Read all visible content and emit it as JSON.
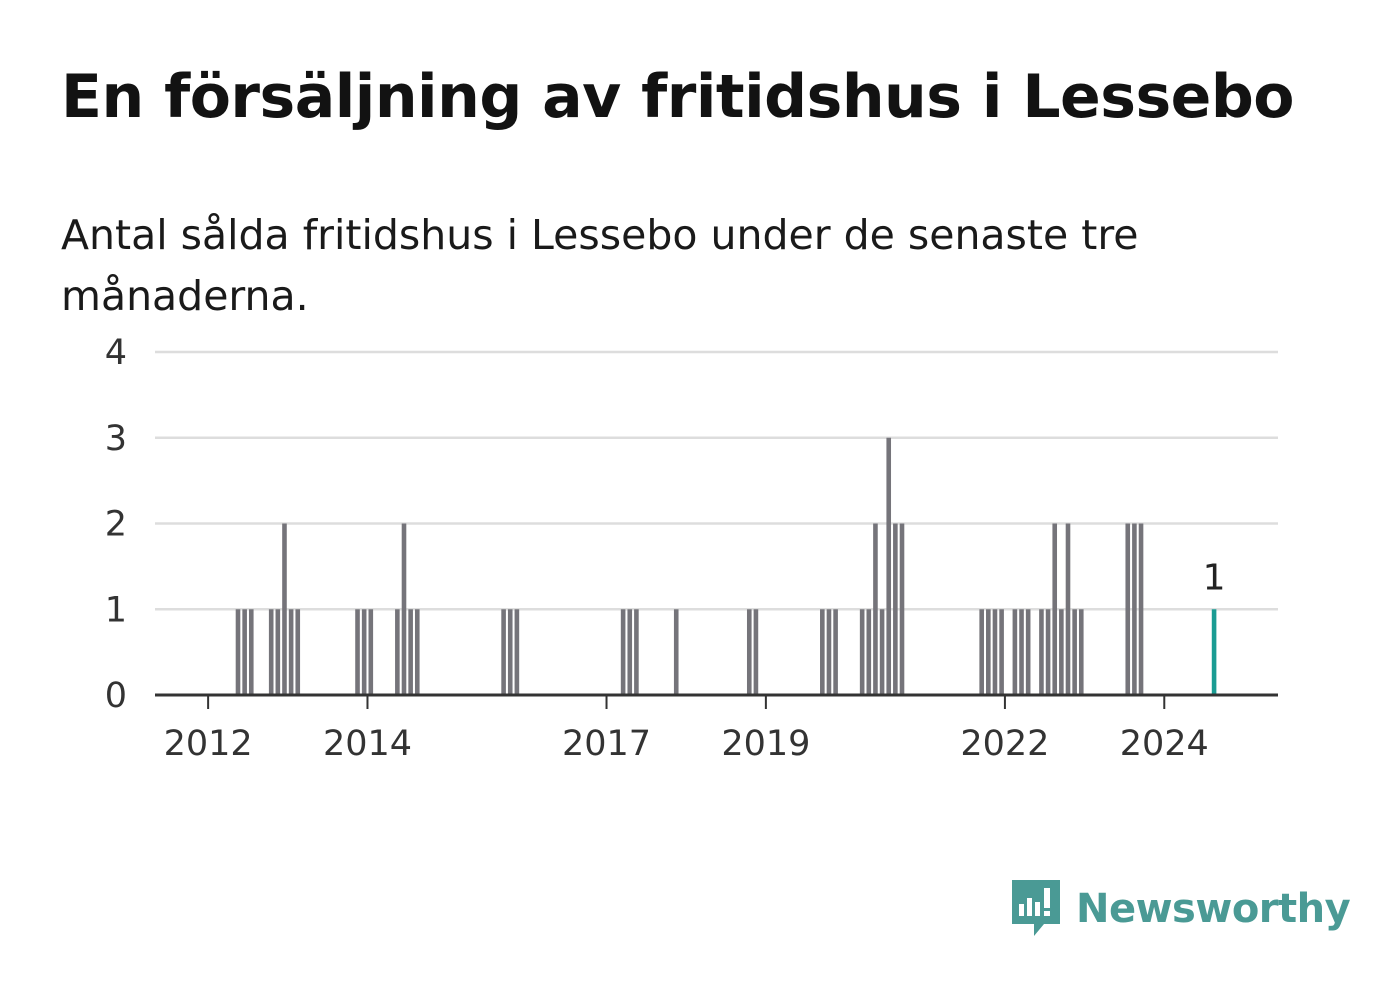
{
  "title": "En försäljning av fritidshus i Lessebo",
  "subtitle": "Antal sålda fritidshus i Lessebo under de senaste tre månaderna.",
  "brand": {
    "name": "Newsworthy",
    "icon": "newsworthy-logo-icon",
    "color": "#4a9a95"
  },
  "colors": {
    "bar": "#75747a",
    "highlight": "#1a9c93",
    "grid": "#dddddd",
    "axis": "#333333"
  },
  "chart_data": {
    "type": "bar",
    "x_type": "date",
    "ylim": [
      0,
      4
    ],
    "yticks": [
      0,
      1,
      2,
      3,
      4
    ],
    "xticks": [
      {
        "x": "2012-01",
        "label": "2012"
      },
      {
        "x": "2014-01",
        "label": "2014"
      },
      {
        "x": "2017-01",
        "label": "2017"
      },
      {
        "x": "2019-01",
        "label": "2019"
      },
      {
        "x": "2022-01",
        "label": "2022"
      },
      {
        "x": "2024-01",
        "label": "2024"
      }
    ],
    "grid": true,
    "legend": "none",
    "series": [
      {
        "values": [
          {
            "x": "2012-05",
            "y": 1
          },
          {
            "x": "2012-06",
            "y": 1
          },
          {
            "x": "2012-07",
            "y": 1
          },
          {
            "x": "2012-10",
            "y": 1
          },
          {
            "x": "2012-11",
            "y": 1
          },
          {
            "x": "2012-12",
            "y": 2
          },
          {
            "x": "2013-01",
            "y": 1
          },
          {
            "x": "2013-02",
            "y": 1
          },
          {
            "x": "2013-11",
            "y": 1
          },
          {
            "x": "2013-12",
            "y": 1
          },
          {
            "x": "2014-01",
            "y": 1
          },
          {
            "x": "2014-05",
            "y": 1
          },
          {
            "x": "2014-06",
            "y": 2
          },
          {
            "x": "2014-07",
            "y": 1
          },
          {
            "x": "2014-08",
            "y": 1
          },
          {
            "x": "2015-09",
            "y": 1
          },
          {
            "x": "2015-10",
            "y": 1
          },
          {
            "x": "2015-11",
            "y": 1
          },
          {
            "x": "2017-03",
            "y": 1
          },
          {
            "x": "2017-04",
            "y": 1
          },
          {
            "x": "2017-05",
            "y": 1
          },
          {
            "x": "2017-11",
            "y": 1
          },
          {
            "x": "2018-10",
            "y": 1
          },
          {
            "x": "2018-11",
            "y": 1
          },
          {
            "x": "2019-09",
            "y": 1
          },
          {
            "x": "2019-10",
            "y": 1
          },
          {
            "x": "2019-11",
            "y": 1
          },
          {
            "x": "2020-03",
            "y": 1
          },
          {
            "x": "2020-04",
            "y": 1
          },
          {
            "x": "2020-05",
            "y": 2
          },
          {
            "x": "2020-06",
            "y": 1
          },
          {
            "x": "2020-07",
            "y": 3
          },
          {
            "x": "2020-08",
            "y": 2
          },
          {
            "x": "2020-09",
            "y": 2
          },
          {
            "x": "2021-09",
            "y": 1
          },
          {
            "x": "2021-10",
            "y": 1
          },
          {
            "x": "2021-11",
            "y": 1
          },
          {
            "x": "2021-12",
            "y": 1
          },
          {
            "x": "2022-02",
            "y": 1
          },
          {
            "x": "2022-03",
            "y": 1
          },
          {
            "x": "2022-04",
            "y": 1
          },
          {
            "x": "2022-06",
            "y": 1
          },
          {
            "x": "2022-07",
            "y": 1
          },
          {
            "x": "2022-08",
            "y": 2
          },
          {
            "x": "2022-09",
            "y": 1
          },
          {
            "x": "2022-10",
            "y": 2
          },
          {
            "x": "2022-11",
            "y": 1
          },
          {
            "x": "2022-12",
            "y": 1
          },
          {
            "x": "2023-07",
            "y": 2
          },
          {
            "x": "2023-08",
            "y": 2
          },
          {
            "x": "2023-09",
            "y": 2
          },
          {
            "x": "2024-08",
            "y": 1,
            "highlight": true,
            "label": "1"
          }
        ]
      }
    ]
  }
}
